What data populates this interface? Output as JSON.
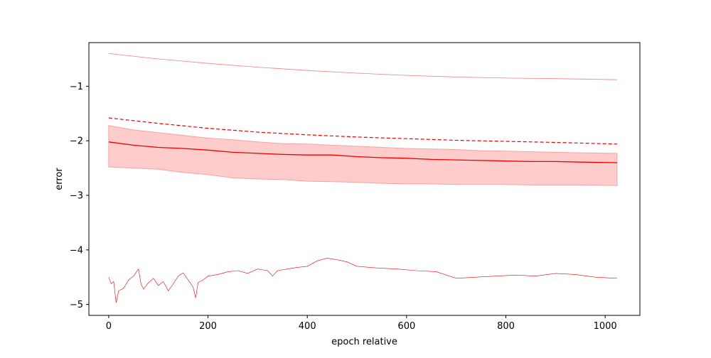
{
  "chart_data": {
    "type": "line",
    "title": "",
    "xlabel": "epoch relative",
    "ylabel": "error",
    "xlim": [
      -40,
      1070
    ],
    "ylim": [
      -5.2,
      -0.2
    ],
    "grid": false,
    "legend": "none",
    "xticks": [
      0,
      200,
      400,
      600,
      800,
      1000
    ],
    "xtick_labels": [
      "0",
      "200",
      "400",
      "600",
      "800",
      "1000"
    ],
    "yticks": [
      -5,
      -4,
      -3,
      -2,
      -1
    ],
    "ytick_labels": [
      "−5",
      "−4",
      "−3",
      "−2",
      "−1"
    ],
    "colors": {
      "main": "#ee0000",
      "light": "#f08080",
      "band_fill": "#ffcccc",
      "band_edge": "#f4a3a3"
    },
    "series": [
      {
        "style": "thin-light",
        "x": [
          0,
          100,
          200,
          300,
          400,
          500,
          600,
          700,
          800,
          900,
          1024
        ],
        "y": [
          -0.4,
          -0.5,
          -0.58,
          -0.65,
          -0.71,
          -0.76,
          -0.8,
          -0.83,
          -0.85,
          -0.86,
          -0.88
        ]
      },
      {
        "style": "dashed",
        "x": [
          0,
          100,
          200,
          300,
          400,
          500,
          600,
          700,
          800,
          900,
          1024
        ],
        "y": [
          -1.58,
          -1.68,
          -1.77,
          -1.84,
          -1.89,
          -1.93,
          -1.96,
          -1.99,
          -2.01,
          -2.03,
          -2.06
        ]
      },
      {
        "style": "solid",
        "x": [
          0,
          50,
          100,
          150,
          200,
          250,
          300,
          350,
          400,
          450,
          500,
          550,
          600,
          650,
          700,
          750,
          800,
          850,
          900,
          950,
          1024
        ],
        "y": [
          -2.02,
          -2.08,
          -2.12,
          -2.14,
          -2.17,
          -2.21,
          -2.23,
          -2.25,
          -2.26,
          -2.26,
          -2.29,
          -2.31,
          -2.32,
          -2.34,
          -2.35,
          -2.36,
          -2.37,
          -2.38,
          -2.38,
          -2.39,
          -2.4
        ]
      },
      {
        "style": "noisy-thin",
        "x": [
          0,
          5,
          10,
          15,
          20,
          30,
          40,
          50,
          60,
          65,
          70,
          80,
          90,
          100,
          110,
          120,
          130,
          140,
          150,
          160,
          170,
          175,
          180,
          190,
          200,
          220,
          240,
          260,
          280,
          300,
          320,
          330,
          340,
          360,
          380,
          400,
          420,
          440,
          460,
          480,
          500,
          540,
          580,
          620,
          660,
          700,
          740,
          780,
          820,
          860,
          900,
          940,
          980,
          1024
        ],
        "y": [
          -4.5,
          -4.62,
          -4.58,
          -4.97,
          -4.75,
          -4.7,
          -4.55,
          -4.48,
          -4.35,
          -4.62,
          -4.72,
          -4.6,
          -4.52,
          -4.65,
          -4.58,
          -4.75,
          -4.62,
          -4.48,
          -4.42,
          -4.55,
          -4.68,
          -4.88,
          -4.6,
          -4.55,
          -4.48,
          -4.45,
          -4.4,
          -4.38,
          -4.43,
          -4.35,
          -4.38,
          -4.48,
          -4.38,
          -4.35,
          -4.32,
          -4.3,
          -4.2,
          -4.15,
          -4.18,
          -4.22,
          -4.3,
          -4.33,
          -4.35,
          -4.38,
          -4.4,
          -4.52,
          -4.5,
          -4.48,
          -4.46,
          -4.48,
          -4.43,
          -4.45,
          -4.5,
          -4.52
        ]
      }
    ],
    "band": {
      "x": [
        0,
        50,
        100,
        150,
        200,
        250,
        300,
        350,
        400,
        450,
        500,
        550,
        600,
        650,
        700,
        750,
        800,
        850,
        900,
        950,
        1024
      ],
      "upper": [
        -1.72,
        -1.8,
        -1.85,
        -1.9,
        -1.95,
        -1.98,
        -2.02,
        -2.05,
        -2.06,
        -2.08,
        -2.1,
        -2.12,
        -2.14,
        -2.15,
        -2.16,
        -2.18,
        -2.19,
        -2.2,
        -2.21,
        -2.22,
        -2.23
      ],
      "lower": [
        -2.48,
        -2.5,
        -2.52,
        -2.58,
        -2.62,
        -2.68,
        -2.7,
        -2.71,
        -2.74,
        -2.75,
        -2.76,
        -2.78,
        -2.79,
        -2.79,
        -2.8,
        -2.8,
        -2.8,
        -2.81,
        -2.81,
        -2.81,
        -2.82
      ]
    }
  }
}
